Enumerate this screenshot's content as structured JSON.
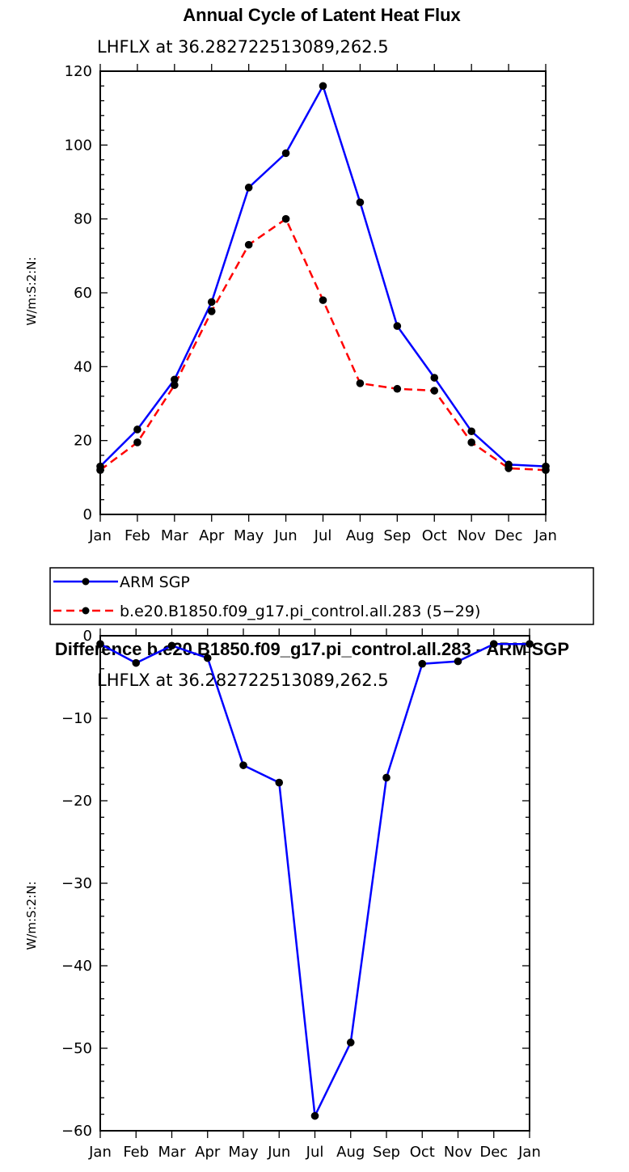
{
  "chart_data": [
    {
      "type": "line",
      "title": "Annual Cycle of Latent Heat Flux",
      "subtitle": "LHFLX at 36.282722513089,262.5",
      "ylabel": "W/m:S:2:N:",
      "xlabel": "",
      "categories": [
        "Jan",
        "Feb",
        "Mar",
        "Apr",
        "May",
        "Jun",
        "Jul",
        "Aug",
        "Sep",
        "Oct",
        "Nov",
        "Dec",
        "Jan"
      ],
      "ylim": [
        0,
        120
      ],
      "yticks": [
        0,
        20,
        40,
        60,
        80,
        100,
        120
      ],
      "series": [
        {
          "name": "ARM SGP",
          "color": "#0000ff",
          "dash": "solid",
          "values": [
            13,
            23,
            36.5,
            57.5,
            88.5,
            97.8,
            116,
            84.5,
            51,
            37,
            22.5,
            13.5,
            13
          ]
        },
        {
          "name": "b.e20.B1850.f09_g17.pi_control.all.283 (5−29)",
          "color": "#ff0000",
          "dash": "dashed",
          "values": [
            12,
            19.5,
            35,
            55,
            73,
            80,
            58,
            35.5,
            34,
            33.5,
            19.5,
            12.5,
            12
          ]
        }
      ],
      "legend_position": "bottom"
    },
    {
      "type": "line",
      "title": "Difference b.e20.B1850.f09_g17.pi_control.all.283 - ARM SGP",
      "subtitle": "LHFLX at 36.282722513089,262.5",
      "ylabel": "W/m:S:2:N:",
      "xlabel": "",
      "categories": [
        "Jan",
        "Feb",
        "Mar",
        "Apr",
        "May",
        "Jun",
        "Jul",
        "Aug",
        "Sep",
        "Oct",
        "Nov",
        "Dec",
        "Jan"
      ],
      "ylim": [
        -60,
        0
      ],
      "yticks": [
        -60,
        -50,
        -40,
        -30,
        -20,
        -10,
        0
      ],
      "series": [
        {
          "color": "#0000ff",
          "dash": "solid",
          "values": [
            -1,
            -3.3,
            -1.2,
            -2.7,
            -15.7,
            -17.8,
            -58.2,
            -49.3,
            -17.2,
            -3.4,
            -3.1,
            -1,
            -1
          ]
        }
      ]
    }
  ]
}
